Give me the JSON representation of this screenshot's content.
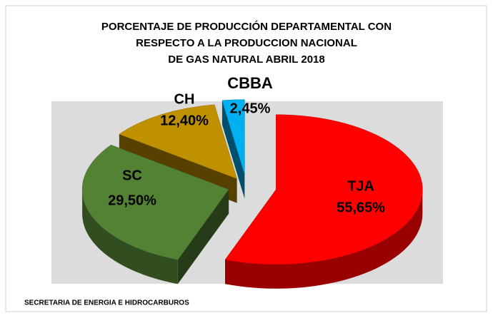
{
  "chart_data": {
    "type": "pie3d",
    "title": [
      "PORCENTAJE DE PRODUCCIÓN DEPARTAMENTAL CON",
      "RESPECTO A LA PRODUCCION NACIONAL",
      "DE GAS NATURAL ABRIL 2018"
    ],
    "categories": [
      "TJA",
      "SC",
      "CH",
      "CBBA"
    ],
    "values": [
      55.65,
      29.5,
      12.4,
      2.45
    ],
    "value_labels": [
      "55,65%",
      "29,50%",
      "12,40%",
      "2,45%"
    ],
    "colors": [
      "#ff0000",
      "#548235",
      "#bf9000",
      "#00b0f0"
    ],
    "source": "SECRETARIA DE ENERGIA E HIDROCARBUROS"
  }
}
